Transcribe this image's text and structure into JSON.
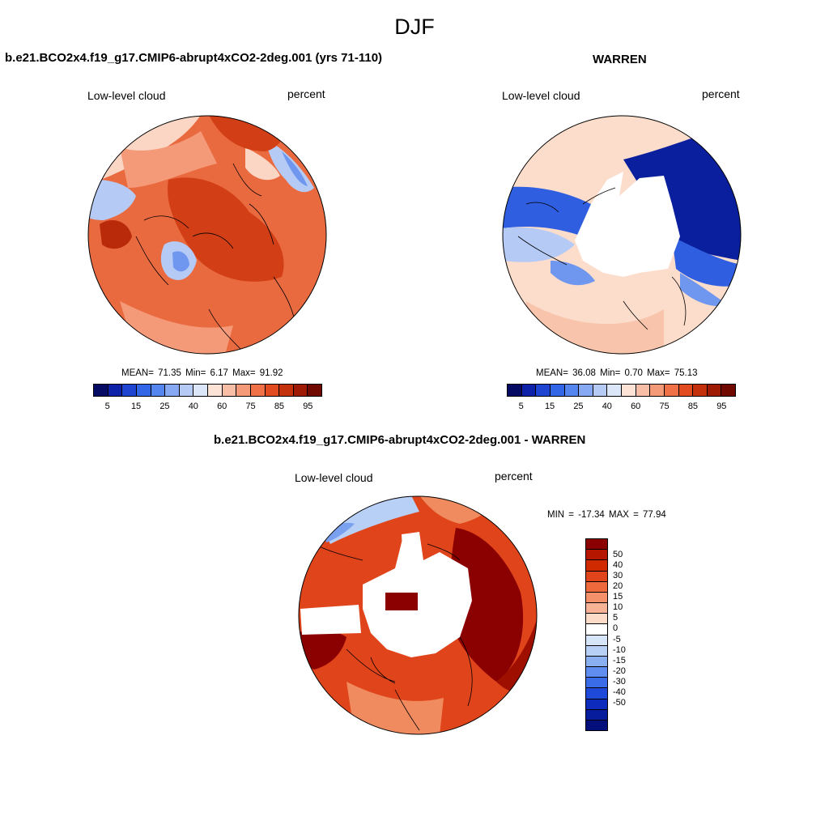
{
  "season": "DJF",
  "panels": {
    "case": {
      "title": "b.e21.BCO2x4.f19_g17.CMIP6-abrupt4xCO2-2deg.001 (yrs 71-110)",
      "variable": "Low-level cloud",
      "units": "percent",
      "stats": "MEAN=  71.35  Min=   6.17  Max=  91.92"
    },
    "obs": {
      "title": "WARREN",
      "variable": "Low-level cloud",
      "units": "percent",
      "stats": "MEAN=  36.08  Min=   0.70  Max=  75.13"
    },
    "diff": {
      "title": "b.e21.BCO2x4.f19_g17.CMIP6-abrupt4xCO2-2deg.001 - WARREN",
      "variable": "Low-level cloud",
      "units": "percent",
      "stats": "MIN = -17.34 MAX =  77.94"
    }
  },
  "colorbar_main": {
    "colors": [
      "#050a63",
      "#0d22a8",
      "#1f44d1",
      "#3366e6",
      "#5586ef",
      "#87a8f3",
      "#b5cbf6",
      "#dbe6f9",
      "#fde3d6",
      "#f8bfa6",
      "#f59a78",
      "#f07148",
      "#e24a20",
      "#c42f0c",
      "#9e1a05",
      "#700a00"
    ],
    "tick_labels": [
      "5",
      "15",
      "25",
      "40",
      "60",
      "75",
      "85",
      "95"
    ]
  },
  "colorbar_diff": {
    "colors": [
      "#8b0000",
      "#b41600",
      "#cf2a00",
      "#e0441a",
      "#ee6a3c",
      "#f4906a",
      "#f8b396",
      "#fcdcc8",
      "#ffffff",
      "#d6e5f9",
      "#b8cff6",
      "#8ab0f2",
      "#5f8ef0",
      "#3a6ce8",
      "#1f4ad9",
      "#0d2cbd",
      "#061c9c",
      "#020f7a"
    ],
    "tick_labels": [
      "50",
      "40",
      "30",
      "20",
      "15",
      "10",
      "5",
      "0",
      "-5",
      "-10",
      "-15",
      "-20",
      "-30",
      "-40",
      "-50"
    ]
  },
  "map_colors": {
    "case_base": "#ea6a40",
    "case_dark": "#d23f16",
    "case_darker": "#b82a0a",
    "case_light": "#f59a78",
    "case_pale": "#fbd6c4",
    "case_blue": "#b5cbf6",
    "case_midblue": "#6f97ef",
    "obs_pale": "#fcdccb",
    "obs_navy": "#0a1f9e",
    "obs_blue": "#2f5fe0",
    "obs_midblue": "#6f97ef",
    "obs_lightblue": "#b5cbf6",
    "obs_peach": "#f8c4ab",
    "diff_base": "#e0441a",
    "diff_dark": "#9e0f00",
    "diff_darkest": "#8b0000",
    "diff_light": "#f08a5f",
    "diff_blue": "#7aa0f0",
    "diff_paleblue": "#b8cff6",
    "missing": "#ffffff"
  }
}
